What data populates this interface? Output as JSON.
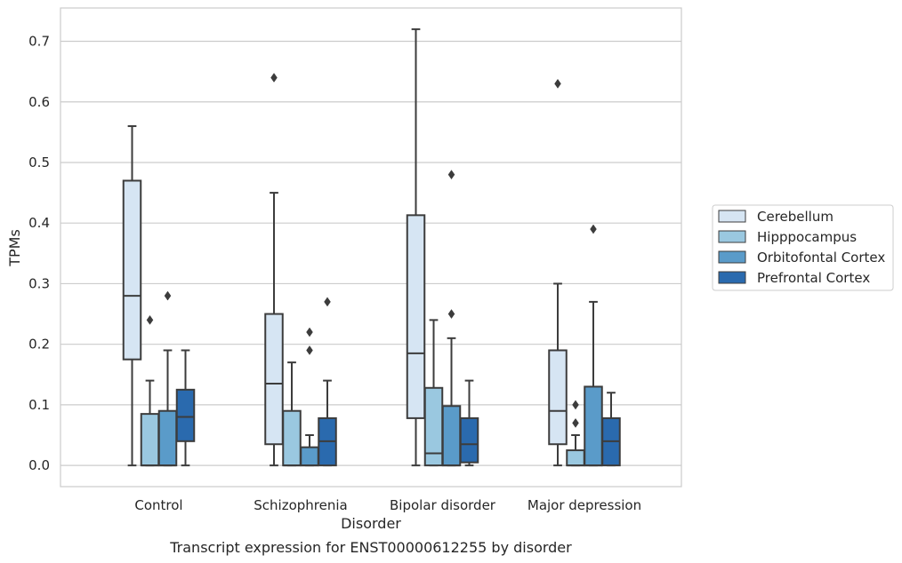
{
  "chart_data": {
    "type": "box",
    "caption": "Transcript expression for ENST00000612255 by disorder",
    "xlabel": "Disorder",
    "ylabel": "TPMs",
    "ylim": [
      -0.035,
      0.755
    ],
    "yticks": [
      0.0,
      0.1,
      0.2,
      0.3,
      0.4,
      0.5,
      0.6,
      0.7
    ],
    "ytick_labels": [
      "0.0",
      "0.1",
      "0.2",
      "0.3",
      "0.4",
      "0.5",
      "0.6",
      "0.7"
    ],
    "grid": true,
    "legend_position": "right",
    "categories": [
      "Control",
      "Schizophrenia",
      "Bipolar disorder",
      "Major depression"
    ],
    "series": [
      {
        "name": "Cerebellum",
        "color": "#d6e5f3",
        "boxes": [
          {
            "whisker_low": 0.0,
            "q1": 0.175,
            "median": 0.28,
            "q3": 0.47,
            "whisker_high": 0.56,
            "outliers": []
          },
          {
            "whisker_low": 0.0,
            "q1": 0.035,
            "median": 0.135,
            "q3": 0.25,
            "whisker_high": 0.45,
            "outliers": [
              0.64
            ]
          },
          {
            "whisker_low": 0.0,
            "q1": 0.078,
            "median": 0.185,
            "q3": 0.413,
            "whisker_high": 0.72,
            "outliers": []
          },
          {
            "whisker_low": 0.0,
            "q1": 0.035,
            "median": 0.09,
            "q3": 0.19,
            "whisker_high": 0.3,
            "outliers": [
              0.63
            ]
          }
        ]
      },
      {
        "name": "Hipppocampus",
        "color": "#9ac8e0",
        "boxes": [
          {
            "whisker_low": 0.0,
            "q1": 0.0,
            "median": 0.0,
            "q3": 0.085,
            "whisker_high": 0.14,
            "outliers": [
              0.24
            ]
          },
          {
            "whisker_low": 0.0,
            "q1": 0.0,
            "median": 0.0,
            "q3": 0.09,
            "whisker_high": 0.17,
            "outliers": []
          },
          {
            "whisker_low": 0.0,
            "q1": 0.0,
            "median": 0.02,
            "q3": 0.128,
            "whisker_high": 0.24,
            "outliers": []
          },
          {
            "whisker_low": 0.0,
            "q1": 0.0,
            "median": 0.0,
            "q3": 0.025,
            "whisker_high": 0.05,
            "outliers": [
              0.07,
              0.1
            ]
          }
        ]
      },
      {
        "name": "Orbitofontal Cortex",
        "color": "#5a9bc9",
        "boxes": [
          {
            "whisker_low": 0.0,
            "q1": 0.0,
            "median": 0.0,
            "q3": 0.09,
            "whisker_high": 0.19,
            "outliers": [
              0.28
            ]
          },
          {
            "whisker_low": 0.0,
            "q1": 0.0,
            "median": 0.0,
            "q3": 0.03,
            "whisker_high": 0.05,
            "outliers": [
              0.19,
              0.22
            ]
          },
          {
            "whisker_low": 0.0,
            "q1": 0.0,
            "median": 0.0,
            "q3": 0.098,
            "whisker_high": 0.21,
            "outliers": [
              0.25,
              0.48
            ]
          },
          {
            "whisker_low": 0.0,
            "q1": 0.0,
            "median": 0.0,
            "q3": 0.13,
            "whisker_high": 0.27,
            "outliers": [
              0.39
            ]
          }
        ]
      },
      {
        "name": "Prefrontal Cortex",
        "color": "#2a6aae",
        "boxes": [
          {
            "whisker_low": 0.0,
            "q1": 0.04,
            "median": 0.08,
            "q3": 0.125,
            "whisker_high": 0.19,
            "outliers": []
          },
          {
            "whisker_low": 0.0,
            "q1": 0.0,
            "median": 0.04,
            "q3": 0.078,
            "whisker_high": 0.14,
            "outliers": [
              0.27
            ]
          },
          {
            "whisker_low": 0.0,
            "q1": 0.005,
            "median": 0.035,
            "q3": 0.078,
            "whisker_high": 0.14,
            "outliers": []
          },
          {
            "whisker_low": 0.0,
            "q1": 0.0,
            "median": 0.04,
            "q3": 0.078,
            "whisker_high": 0.12,
            "outliers": []
          }
        ]
      }
    ]
  }
}
